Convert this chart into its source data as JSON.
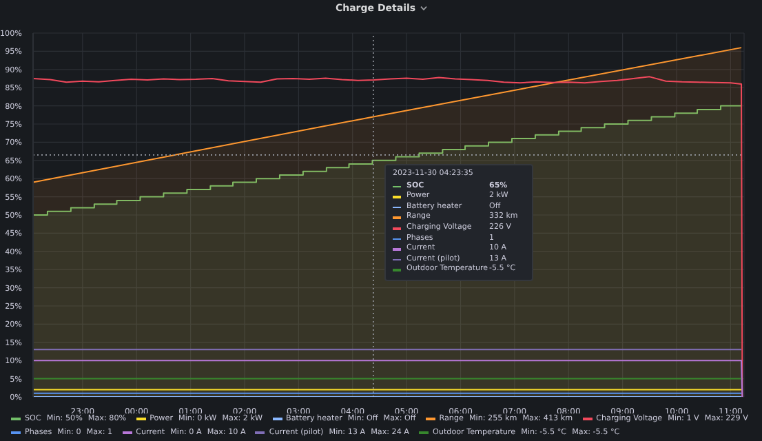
{
  "chart_data": {
    "type": "line",
    "title": "Charge Details",
    "xlim": [
      "2023-11-29T22:05",
      "2023-11-30T11:15"
    ],
    "xticks": [
      {
        "value": "2023-11-29T23:00",
        "label": "23:00"
      },
      {
        "value": "2023-11-30T00:00",
        "label": "00:00"
      },
      {
        "value": "2023-11-30T01:00",
        "label": "01:00"
      },
      {
        "value": "2023-11-30T02:00",
        "label": "02:00"
      },
      {
        "value": "2023-11-30T03:00",
        "label": "03:00"
      },
      {
        "value": "2023-11-30T04:00",
        "label": "04:00"
      },
      {
        "value": "2023-11-30T05:00",
        "label": "05:00"
      },
      {
        "value": "2023-11-30T06:00",
        "label": "06:00"
      },
      {
        "value": "2023-11-30T07:00",
        "label": "07:00"
      },
      {
        "value": "2023-11-30T08:00",
        "label": "08:00"
      },
      {
        "value": "2023-11-30T09:00",
        "label": "09:00"
      },
      {
        "value": "2023-11-30T10:00",
        "label": "10:00"
      },
      {
        "value": "2023-11-30T11:00",
        "label": "11:00"
      }
    ],
    "ylim": [
      0,
      100
    ],
    "yticks": [
      {
        "value": 0,
        "label": "0%"
      },
      {
        "value": 5,
        "label": "5%"
      },
      {
        "value": 10,
        "label": "10%"
      },
      {
        "value": 15,
        "label": "15%"
      },
      {
        "value": 20,
        "label": "20%"
      },
      {
        "value": 25,
        "label": "25%"
      },
      {
        "value": 30,
        "label": "30%"
      },
      {
        "value": 35,
        "label": "35%"
      },
      {
        "value": 40,
        "label": "40%"
      },
      {
        "value": 45,
        "label": "45%"
      },
      {
        "value": 50,
        "label": "50%"
      },
      {
        "value": 55,
        "label": "55%"
      },
      {
        "value": 60,
        "label": "60%"
      },
      {
        "value": 65,
        "label": "65%"
      },
      {
        "value": 70,
        "label": "70%"
      },
      {
        "value": 75,
        "label": "75%"
      },
      {
        "value": 80,
        "label": "80%"
      },
      {
        "value": 85,
        "label": "85%"
      },
      {
        "value": 90,
        "label": "90%"
      },
      {
        "value": 95,
        "label": "95%"
      },
      {
        "value": 100,
        "label": "100%"
      }
    ],
    "grid": true,
    "legend": "bottom",
    "marker": "none",
    "line_style": "solid",
    "series": [
      {
        "name": "SOC",
        "type": "area",
        "color": "#73bf69",
        "x": [
          "2023-11-29T22:05",
          "2023-11-29T22:21",
          "2023-11-29T22:21",
          "2023-11-29T22:47",
          "2023-11-29T22:47",
          "2023-11-29T23:13",
          "2023-11-29T23:13",
          "2023-11-29T23:38",
          "2023-11-29T23:38",
          "2023-11-30T00:04",
          "2023-11-30T00:04",
          "2023-11-30T00:30",
          "2023-11-30T00:30",
          "2023-11-30T00:56",
          "2023-11-30T00:56",
          "2023-11-30T01:22",
          "2023-11-30T01:22",
          "2023-11-30T01:47",
          "2023-11-30T01:47",
          "2023-11-30T02:13",
          "2023-11-30T02:13",
          "2023-11-30T02:39",
          "2023-11-30T02:39",
          "2023-11-30T03:05",
          "2023-11-30T03:05",
          "2023-11-30T03:31",
          "2023-11-30T03:31",
          "2023-11-30T03:56",
          "2023-11-30T03:56",
          "2023-11-30T04:22",
          "2023-11-30T04:22",
          "2023-11-30T04:48",
          "2023-11-30T04:48",
          "2023-11-30T05:14",
          "2023-11-30T05:14",
          "2023-11-30T05:40",
          "2023-11-30T05:40",
          "2023-11-30T06:05",
          "2023-11-30T06:05",
          "2023-11-30T06:31",
          "2023-11-30T06:31",
          "2023-11-30T06:57",
          "2023-11-30T06:57",
          "2023-11-30T07:23",
          "2023-11-30T07:23",
          "2023-11-30T07:49",
          "2023-11-30T07:49",
          "2023-11-30T08:14",
          "2023-11-30T08:14",
          "2023-11-30T08:40",
          "2023-11-30T08:40",
          "2023-11-30T09:06",
          "2023-11-30T09:06",
          "2023-11-30T09:32",
          "2023-11-30T09:32",
          "2023-11-30T09:58",
          "2023-11-30T09:58",
          "2023-11-30T10:23",
          "2023-11-30T10:23",
          "2023-11-30T10:49",
          "2023-11-30T10:49",
          "2023-11-30T11:12"
        ],
        "values": [
          50,
          50,
          51,
          51,
          52,
          52,
          53,
          53,
          54,
          54,
          55,
          55,
          56,
          56,
          57,
          57,
          58,
          58,
          59,
          59,
          60,
          60,
          61,
          61,
          62,
          62,
          63,
          63,
          64,
          64,
          65,
          65,
          66,
          66,
          67,
          67,
          68,
          68,
          69,
          69,
          70,
          70,
          71,
          71,
          72,
          72,
          73,
          73,
          74,
          74,
          75,
          75,
          76,
          76,
          77,
          77,
          78,
          78,
          79,
          79,
          80,
          80
        ]
      },
      {
        "name": "Power",
        "color": "#fade2a",
        "x": [
          "2023-11-29T22:05",
          "2023-11-30T11:12"
        ],
        "values": [
          2,
          2
        ]
      },
      {
        "name": "Battery heater",
        "color": "#8ab8ff",
        "x": [
          "2023-11-29T22:05",
          "2023-11-30T11:12"
        ],
        "values": [
          0,
          0
        ]
      },
      {
        "name": "Range",
        "type": "area",
        "color": "#ff9830",
        "x": [
          "2023-11-29T22:05",
          "2023-11-30T04:23",
          "2023-11-30T11:12"
        ],
        "values": [
          59,
          77,
          96
        ]
      },
      {
        "name": "Charging Voltage",
        "color": "#f2495c",
        "x": [
          "2023-11-29T22:05",
          "2023-11-29T22:24",
          "2023-11-29T22:42",
          "2023-11-29T23:00",
          "2023-11-29T23:18",
          "2023-11-29T23:36",
          "2023-11-29T23:54",
          "2023-11-30T00:12",
          "2023-11-30T00:30",
          "2023-11-30T00:48",
          "2023-11-30T01:06",
          "2023-11-30T01:24",
          "2023-11-30T01:42",
          "2023-11-30T02:00",
          "2023-11-30T02:18",
          "2023-11-30T02:36",
          "2023-11-30T02:54",
          "2023-11-30T03:12",
          "2023-11-30T03:30",
          "2023-11-30T03:48",
          "2023-11-30T04:06",
          "2023-11-30T04:24",
          "2023-11-30T04:42",
          "2023-11-30T05:00",
          "2023-11-30T05:18",
          "2023-11-30T05:36",
          "2023-11-30T05:54",
          "2023-11-30T06:12",
          "2023-11-30T06:30",
          "2023-11-30T06:48",
          "2023-11-30T07:06",
          "2023-11-30T07:24",
          "2023-11-30T07:42",
          "2023-11-30T08:00",
          "2023-11-30T08:18",
          "2023-11-30T08:36",
          "2023-11-30T08:54",
          "2023-11-30T09:12",
          "2023-11-30T09:30",
          "2023-11-30T09:48",
          "2023-11-30T10:06",
          "2023-11-30T10:24",
          "2023-11-30T10:42",
          "2023-11-30T11:00",
          "2023-11-30T11:12",
          "2023-11-30T11:13"
        ],
        "values": [
          87.5,
          87.2,
          86.5,
          86.8,
          86.6,
          87.0,
          87.3,
          87.1,
          87.4,
          87.2,
          87.3,
          87.5,
          86.9,
          86.7,
          86.5,
          87.4,
          87.5,
          87.3,
          87.6,
          87.2,
          87.0,
          87.1,
          87.4,
          87.6,
          87.3,
          87.8,
          87.4,
          87.2,
          87.0,
          86.5,
          86.3,
          86.6,
          86.4,
          86.5,
          86.3,
          86.7,
          87.0,
          87.5,
          88.0,
          86.8,
          86.6,
          86.5,
          86.4,
          86.3,
          86.0,
          0
        ]
      },
      {
        "name": "Phases",
        "color": "#5794f2",
        "x": [
          "2023-11-29T22:05",
          "2023-11-30T11:12"
        ],
        "values": [
          1,
          1
        ]
      },
      {
        "name": "Current",
        "color": "#b877d9",
        "x": [
          "2023-11-29T22:05",
          "2023-11-30T11:12",
          "2023-11-30T11:13"
        ],
        "values": [
          10,
          10,
          0
        ]
      },
      {
        "name": "Current (pilot)",
        "color": "#806eb7",
        "x": [
          "2023-11-29T22:05",
          "2023-11-30T11:12"
        ],
        "values": [
          13,
          13
        ]
      },
      {
        "name": "Outdoor Temperature",
        "color": "#37872d",
        "x": [
          "2023-11-29T22:05",
          "2023-11-30T11:12"
        ],
        "values": [
          5,
          5
        ]
      }
    ],
    "ref_lines": [
      {
        "axis": "x",
        "value": "2023-11-30T04:23",
        "color": "#9a9ea6",
        "line_style": "dotted"
      },
      {
        "axis": "y",
        "value": 66.5,
        "color": "#9a9ea6",
        "line_style": "dotted"
      }
    ],
    "annotations": [
      "2023-11-30 04:23:35",
      "65%",
      "2 kW",
      "Off",
      "332 km",
      "226 V",
      "1",
      "10 A",
      "13 A",
      "-5.5 °C",
      "Min: 50%",
      "Max: 80%",
      "Min: 0 kW",
      "Max: 2 kW",
      "Min: Off",
      "Max: Off",
      "Min: 255 km",
      "Max: 413 km",
      "Min: 1 V",
      "Max: 229 V",
      "Min: 0",
      "Max: 1",
      "Min: 0 A",
      "Max: 10 A",
      "Min: 13 A",
      "Max: 24 A",
      "Min: -5.5 °C",
      "Max: -5.5 °C"
    ]
  }
}
